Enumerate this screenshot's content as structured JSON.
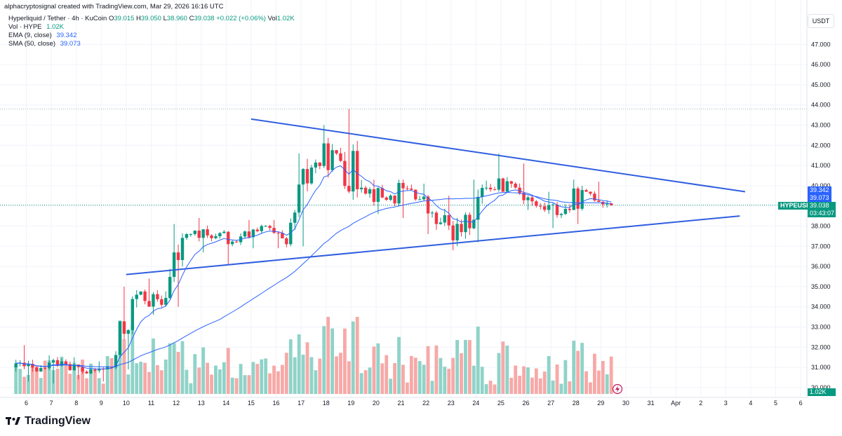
{
  "header": {
    "attribution": "alphacryptosignal created with TradingView.com, Mar 29, 2026 16:16 UTC",
    "symbol_title": "Hyperliquid / Tether · 4h · KuCoin",
    "ohlc": {
      "o_label": "O",
      "o": "39.015",
      "h_label": "H",
      "h": "39.050",
      "l_label": "L",
      "l": "38.960",
      "c_label": "C",
      "c": "39.038",
      "change": "+0.022 (+0.06%)",
      "vol_label": "Vol",
      "vol": "1.02K"
    },
    "indicators": [
      {
        "label": "Vol · HYPE",
        "value": "1.02K",
        "color": "#089981"
      },
      {
        "label": "EMA (9, close)",
        "value": "39.342",
        "color": "#2962ff"
      },
      {
        "label": "SMA (50, close)",
        "value": "39.073",
        "color": "#2962ff"
      }
    ]
  },
  "price_axis": {
    "currency": "USDT",
    "ticks": [
      "47.000",
      "46.000",
      "45.000",
      "44.000",
      "43.000",
      "42.000",
      "41.000",
      "40.000",
      "39.000",
      "38.000",
      "37.000",
      "36.000",
      "35.000",
      "34.000",
      "33.000",
      "32.000",
      "31.000",
      "30.000"
    ],
    "tags": {
      "ema": "39.342",
      "sma": "39.073",
      "symbol": "HYPEUSDT",
      "last": "39.038",
      "countdown": "03:43:07",
      "volume": "1.02K"
    }
  },
  "time_axis": {
    "ticks": [
      "6",
      "7",
      "8",
      "9",
      "10",
      "11",
      "12",
      "13",
      "14",
      "15",
      "16",
      "17",
      "18",
      "19",
      "20",
      "21",
      "22",
      "23",
      "24",
      "25",
      "26",
      "27",
      "28",
      "29",
      "30",
      "31",
      "Apr",
      "2",
      "3",
      "4",
      "5",
      "6"
    ]
  },
  "footer": {
    "brand": "TradingView"
  },
  "colors": {
    "up": "#089981",
    "down": "#f23645",
    "vol_up": "#8fd3c8",
    "vol_down": "#f7a9a7",
    "ema": "#2962ff",
    "sma": "#2962ff",
    "trendline": "#2f5ee0",
    "last_price": "#089981",
    "grid": "#f0f3fa",
    "axis_text": "#131722"
  },
  "chart_data": {
    "type": "candlestick",
    "symbol": "HYPEUSDT",
    "timeframe": "4h",
    "y_range": [
      29.8,
      48.0
    ],
    "x_range": [
      "Mar 5",
      "Apr 6"
    ],
    "last_price": 39.038,
    "resistance_level": 43.8,
    "days": [
      {
        "day": "Mar 6",
        "open": 31.0,
        "high": 32.1,
        "low": 30.3,
        "close": 30.8
      },
      {
        "day": "Mar 7",
        "open": 30.8,
        "high": 31.6,
        "low": 30.2,
        "close": 31.3
      },
      {
        "day": "Mar 8",
        "open": 31.3,
        "high": 31.5,
        "low": 30.4,
        "close": 30.7
      },
      {
        "day": "Mar 9",
        "open": 30.7,
        "high": 31.3,
        "low": 30.3,
        "close": 31.0
      },
      {
        "day": "Mar 10",
        "open": 31.0,
        "high": 35.0,
        "low": 30.9,
        "close": 34.6
      },
      {
        "day": "Mar 11",
        "open": 34.6,
        "high": 35.4,
        "low": 33.6,
        "close": 34.1
      },
      {
        "day": "Mar 12",
        "open": 34.1,
        "high": 38.1,
        "low": 34.0,
        "close": 37.6
      },
      {
        "day": "Mar 13",
        "open": 37.6,
        "high": 38.4,
        "low": 36.7,
        "close": 37.4
      },
      {
        "day": "Mar 14",
        "open": 37.4,
        "high": 37.8,
        "low": 36.1,
        "close": 37.2
      },
      {
        "day": "Mar 15",
        "open": 37.2,
        "high": 38.3,
        "low": 36.9,
        "close": 38.0
      },
      {
        "day": "Mar 16",
        "open": 38.0,
        "high": 38.3,
        "low": 36.9,
        "close": 37.1
      },
      {
        "day": "Mar 17",
        "open": 37.1,
        "high": 41.6,
        "low": 37.0,
        "close": 40.9
      },
      {
        "day": "Mar 18",
        "open": 40.9,
        "high": 43.0,
        "low": 40.4,
        "close": 41.6
      },
      {
        "day": "Mar 19",
        "open": 41.6,
        "high": 43.8,
        "low": 39.3,
        "close": 39.9
      },
      {
        "day": "Mar 20",
        "open": 39.9,
        "high": 40.3,
        "low": 38.6,
        "close": 39.3
      },
      {
        "day": "Mar 21",
        "open": 39.3,
        "high": 40.3,
        "low": 38.4,
        "close": 39.8
      },
      {
        "day": "Mar 22",
        "open": 39.8,
        "high": 40.1,
        "low": 37.6,
        "close": 38.1
      },
      {
        "day": "Mar 23",
        "open": 38.1,
        "high": 39.5,
        "low": 36.8,
        "close": 37.7
      },
      {
        "day": "Mar 24",
        "open": 37.7,
        "high": 40.3,
        "low": 37.2,
        "close": 39.9
      },
      {
        "day": "Mar 25",
        "open": 39.9,
        "high": 41.6,
        "low": 39.7,
        "close": 40.1
      },
      {
        "day": "Mar 26",
        "open": 40.1,
        "high": 41.1,
        "low": 38.8,
        "close": 39.0
      },
      {
        "day": "Mar 27",
        "open": 39.0,
        "high": 39.7,
        "low": 37.9,
        "close": 38.6
      },
      {
        "day": "Mar 28",
        "open": 38.6,
        "high": 40.3,
        "low": 38.1,
        "close": 39.7
      },
      {
        "day": "Mar 29",
        "open": 39.7,
        "high": 40.2,
        "low": 38.9,
        "close": 39.038
      }
    ],
    "series": [
      {
        "name": "EMA (9, close)",
        "last": 39.342
      },
      {
        "name": "SMA (50, close)",
        "last": 39.073
      },
      {
        "name": "Vol · HYPE",
        "last": "1.02K"
      }
    ],
    "trendlines": [
      {
        "name": "descending resistance",
        "start": {
          "date": "Mar 15",
          "price": 43.3
        },
        "end": {
          "date": "Apr 4",
          "price": 39.7
        }
      },
      {
        "name": "ascending support",
        "start": {
          "date": "Mar 10",
          "price": 35.6
        },
        "end": {
          "date": "Apr 3",
          "price": 38.5
        }
      }
    ],
    "grid": true,
    "legend_position": "top-left"
  }
}
